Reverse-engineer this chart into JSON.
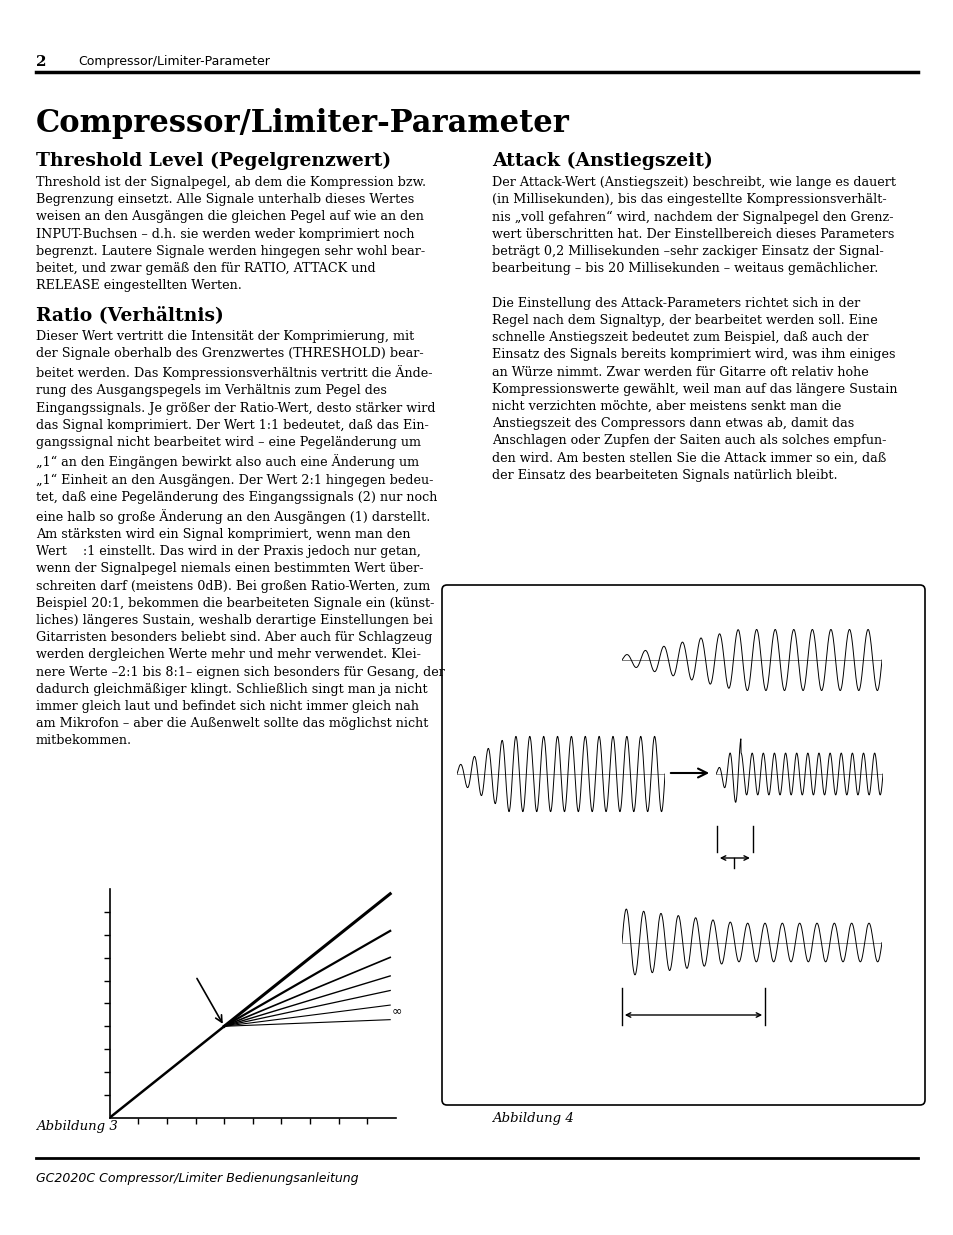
{
  "page_number": "2",
  "header_text": "Compressor/Limiter-Parameter",
  "footer_text": "GC2020C Compressor/Limiter Bedienungsanleitung",
  "main_title": "Compressor/Limiter-Parameter",
  "section1_title": "Threshold Level (Pegelgrenzwert)",
  "section2_title": "Ratio (Verhältnis)",
  "section3_title": "Attack (Anstiegszeit)",
  "abbildung3": "Abbildung 3",
  "abbildung4": "Abbildung 4",
  "bg_color": "#ffffff",
  "text_color": "#000000",
  "s1_body": "Threshold ist der Signalpegel, ab dem die Kompression bzw.\nBegrenzung einsetzt. Alle Signale unterhalb dieses Wertes\nweisen an den Ausgängen die gleichen Pegel auf wie an den\nINPUT-Buchsen – d.h. sie werden weder komprimiert noch\nbegrenzt. Lautere Signale werden hingegen sehr wohl bear-\nbeitet, und zwar gemäß den für RATIO, ATTACK und\nRELEASE eingestellten Werten.",
  "s1_italic": "Threshold",
  "s2_body": "Dieser Wert vertritt die Intensität der Komprimierung, mit\nder Signale oberhalb des Grenzwertes (THRESHOLD) bear-\nbeitet werden. Das Kompressionsverhältnis vertritt die Ände-\nrung des Ausgangspegels im Verhältnis zum Pegel des\nEingangssignals. Je größer der Ratio-Wert, desto stärker wird\ndas Signal komprimiert. Der Wert 1:1 bedeutet, daß das Ein-\ngangssignal nicht bearbeitet wird – eine Pegeländerung um\n„1“ an den Eingängen bewirkt also auch eine Änderung um\n„1“ Einheit an den Ausgängen. Der Wert 2:1 hingegen bedeu-\ntet, daß eine Pegeländerung des Eingangssignals (2) nur noch\neine halb so große Änderung an den Ausgängen (1) darstellt.\nAm stärksten wird ein Signal komprimiert, wenn man den\nWert    :1 einstellt. Das wird in der Praxis jedoch nur getan,\nwenn der Signalpegel niemals einen bestimmten Wert über-\nschreiten darf (meistens 0dB). Bei großen Ratio-Werten, zum\nBeispiel 20:1, bekommen die bearbeiteten Signale ein (künst-\nliches) längeres Sustain, weshalb derartige Einstellungen bei\nGitarristen besonders beliebt sind. Aber auch für Schlagzeug\nwerden dergleichen Werte mehr und mehr verwendet. Klei-\nnere Werte –2:1 bis 8:1– eignen sich besonders für Gesang, der\ndadurch gleichmäßiger klingt. Schließlich singt man ja nicht\nimmer gleich laut und befindet sich nicht immer gleich nah\nam Mikrofon – aber die Außenwelt sollte das möglichst nicht\nmitbekommen.",
  "s3_body": "Der Attack-Wert (Anstiegszeit) beschreibt, wie lange es dauert\n(in Millisekunden), bis das eingestellte Kompressionsverhält-\nnis „voll gefahren“ wird, nachdem der Signalpegel den Grenz-\nwert überschritten hat. Der Einstellbereich dieses Parameters\nbeträgt 0,2 Millisekunden –sehr zackiger Einsatz der Signal-\nbearbeitung – bis 20 Millisekunden – weitaus gemächlicher.\n\nDie Einstellung des Attack-Parameters richtet sich in der\nRegel nach dem Signaltyp, der bearbeitet werden soll. Eine\nschnelle Anstiegszeit bedeutet zum Beispiel, daß auch der\nEinsatz des Signals bereits komprimiert wird, was ihm einiges\nan Würze nimmt. Zwar werden für Gitarre oft relativ hohe\nKompressionswerte gewählt, weil man auf das längere Sustain\nnicht verzichten möchte, aber meistens senkt man die\nAnstiegszeit des Compressors dann etwas ab, damit das\nAnschlagen oder Zupfen der Saiten auch als solches empfun-\nden wird. Am besten stellen Sie die Attack immer so ein, daß\nder Einsatz des bearbeiteten Signals natürlich bleibt."
}
